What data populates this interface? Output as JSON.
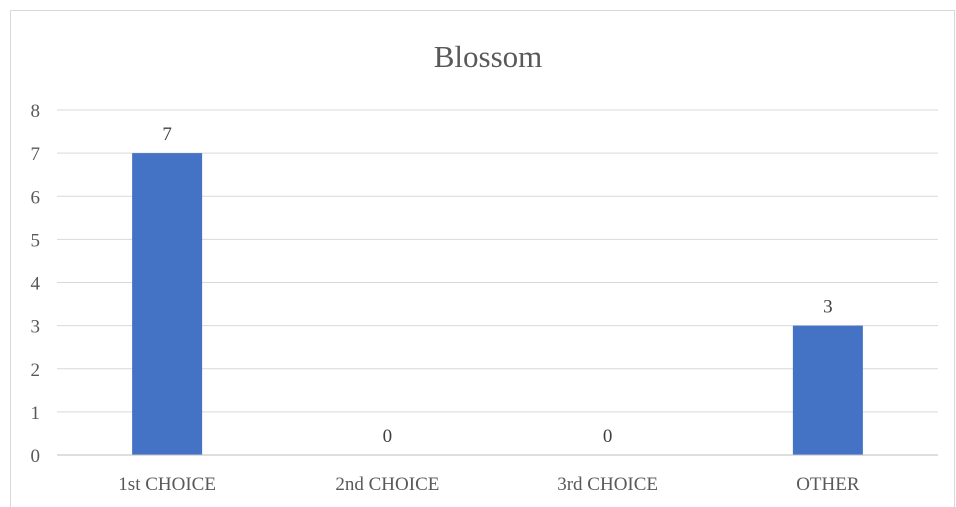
{
  "chart_data": {
    "type": "bar",
    "title": "Blossom",
    "categories": [
      "1st CHOICE",
      "2nd CHOICE",
      "3rd CHOICE",
      "OTHER"
    ],
    "values": [
      7,
      0,
      0,
      3
    ],
    "data_labels": [
      "7",
      "0",
      "0",
      "3"
    ],
    "xlabel": "",
    "ylabel": "",
    "ylim": [
      0,
      8
    ],
    "y_ticks": [
      "0",
      "1",
      "2",
      "3",
      "4",
      "5",
      "6",
      "7",
      "8"
    ],
    "grid": true,
    "legend": "none",
    "colors": {
      "bar": "#4472c4",
      "grid": "#d9d9d9",
      "axis": "#bfbfbf",
      "text": "#595959"
    }
  }
}
